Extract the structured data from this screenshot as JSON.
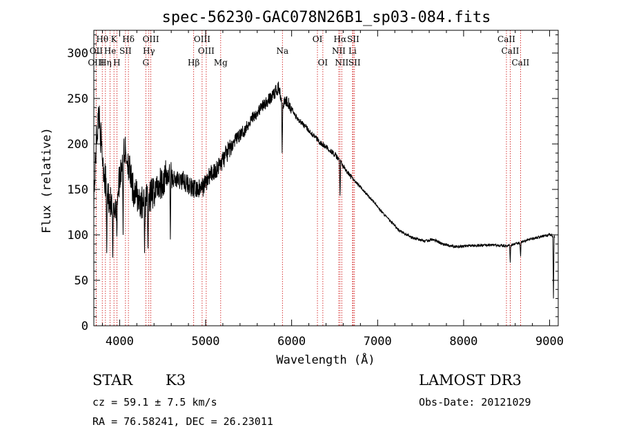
{
  "chart_data": {
    "type": "line",
    "title": "spec-56230-GAC078N26B1_sp03-084.fits",
    "xlabel": "Wavelength (Å)",
    "ylabel": "Flux (relative)",
    "xlim": [
      3700,
      9100
    ],
    "ylim": [
      0,
      325
    ],
    "x_ticks": [
      4000,
      5000,
      6000,
      7000,
      8000,
      9000
    ],
    "y_ticks": [
      0,
      50,
      100,
      150,
      200,
      250,
      300
    ],
    "grid": false,
    "line_color": "#000000",
    "line_marker_color": "#cc0000",
    "spectral_lines": [
      {
        "label": "Hθ",
        "wavelength": 3798,
        "row": 0
      },
      {
        "label": "K",
        "wavelength": 3934,
        "row": 0
      },
      {
        "label": "Hδ",
        "wavelength": 4102,
        "row": 0
      },
      {
        "label": "OIII",
        "wavelength": 4363,
        "row": 0
      },
      {
        "label": "OIII",
        "wavelength": 4959,
        "row": 0
      },
      {
        "label": "OI",
        "wavelength": 6300,
        "row": 0
      },
      {
        "label": "Hα",
        "wavelength": 6563,
        "row": 0
      },
      {
        "label": "SII",
        "wavelength": 6716,
        "row": 0
      },
      {
        "label": "CaII",
        "wavelength": 8498,
        "row": 0
      },
      {
        "label": "OII",
        "wavelength": 3727,
        "row": 1
      },
      {
        "label": "He",
        "wavelength": 3889,
        "row": 1
      },
      {
        "label": "SII",
        "wavelength": 4068,
        "row": 1
      },
      {
        "label": "Hγ",
        "wavelength": 4340,
        "row": 1
      },
      {
        "label": "OIII",
        "wavelength": 5007,
        "row": 1
      },
      {
        "label": "Na",
        "wavelength": 5893,
        "row": 1
      },
      {
        "label": "NII",
        "wavelength": 6548,
        "row": 1
      },
      {
        "label": "Li",
        "wavelength": 6708,
        "row": 1
      },
      {
        "label": "CaII",
        "wavelength": 8542,
        "row": 1
      },
      {
        "label": "OIII",
        "wavelength": 3727,
        "row": 2
      },
      {
        "label": "Hη",
        "wavelength": 3835,
        "row": 2
      },
      {
        "label": "H",
        "wavelength": 3968,
        "row": 2
      },
      {
        "label": "G",
        "wavelength": 4304,
        "row": 2
      },
      {
        "label": "Hβ",
        "wavelength": 4861,
        "row": 2
      },
      {
        "label": "Mg",
        "wavelength": 5175,
        "row": 2
      },
      {
        "label": "OI",
        "wavelength": 6363,
        "row": 2
      },
      {
        "label": "NII",
        "wavelength": 6583,
        "row": 2
      },
      {
        "label": "SII",
        "wavelength": 6731,
        "row": 2
      },
      {
        "label": "CaII",
        "wavelength": 8662,
        "row": 2
      }
    ],
    "spectrum_anchors": [
      {
        "x": 3700,
        "y": 140
      },
      {
        "x": 3730,
        "y": 205
      },
      {
        "x": 3760,
        "y": 235
      },
      {
        "x": 3790,
        "y": 195
      },
      {
        "x": 3830,
        "y": 160
      },
      {
        "x": 3880,
        "y": 140
      },
      {
        "x": 3930,
        "y": 120
      },
      {
        "x": 3980,
        "y": 150
      },
      {
        "x": 4050,
        "y": 195
      },
      {
        "x": 4100,
        "y": 180
      },
      {
        "x": 4150,
        "y": 150
      },
      {
        "x": 4250,
        "y": 135
      },
      {
        "x": 4350,
        "y": 140
      },
      {
        "x": 4450,
        "y": 155
      },
      {
        "x": 4550,
        "y": 165
      },
      {
        "x": 4650,
        "y": 160
      },
      {
        "x": 4750,
        "y": 160
      },
      {
        "x": 4850,
        "y": 150
      },
      {
        "x": 4950,
        "y": 150
      },
      {
        "x": 5050,
        "y": 165
      },
      {
        "x": 5150,
        "y": 175
      },
      {
        "x": 5250,
        "y": 190
      },
      {
        "x": 5350,
        "y": 205
      },
      {
        "x": 5450,
        "y": 215
      },
      {
        "x": 5550,
        "y": 230
      },
      {
        "x": 5650,
        "y": 240
      },
      {
        "x": 5750,
        "y": 250
      },
      {
        "x": 5850,
        "y": 262
      },
      {
        "x": 5900,
        "y": 245
      },
      {
        "x": 5950,
        "y": 248
      },
      {
        "x": 6050,
        "y": 230
      },
      {
        "x": 6150,
        "y": 220
      },
      {
        "x": 6250,
        "y": 210
      },
      {
        "x": 6350,
        "y": 200
      },
      {
        "x": 6450,
        "y": 193
      },
      {
        "x": 6550,
        "y": 183
      },
      {
        "x": 6650,
        "y": 168
      },
      {
        "x": 6750,
        "y": 158
      },
      {
        "x": 6850,
        "y": 147
      },
      {
        "x": 6950,
        "y": 137
      },
      {
        "x": 7050,
        "y": 125
      },
      {
        "x": 7150,
        "y": 115
      },
      {
        "x": 7250,
        "y": 105
      },
      {
        "x": 7400,
        "y": 97
      },
      {
        "x": 7550,
        "y": 93
      },
      {
        "x": 7650,
        "y": 95
      },
      {
        "x": 7750,
        "y": 90
      },
      {
        "x": 7900,
        "y": 87
      },
      {
        "x": 8100,
        "y": 88
      },
      {
        "x": 8300,
        "y": 89
      },
      {
        "x": 8500,
        "y": 88
      },
      {
        "x": 8650,
        "y": 91
      },
      {
        "x": 8800,
        "y": 96
      },
      {
        "x": 9000,
        "y": 100
      },
      {
        "x": 9060,
        "y": 98
      }
    ],
    "spectrum_dips": [
      {
        "x": 3850,
        "y": 80
      },
      {
        "x": 3920,
        "y": 75
      },
      {
        "x": 3968,
        "y": 95
      },
      {
        "x": 4040,
        "y": 100
      },
      {
        "x": 4290,
        "y": 80
      },
      {
        "x": 4330,
        "y": 85
      },
      {
        "x": 4590,
        "y": 95
      },
      {
        "x": 5890,
        "y": 190
      },
      {
        "x": 6563,
        "y": 140
      },
      {
        "x": 8542,
        "y": 68
      },
      {
        "x": 8662,
        "y": 75
      },
      {
        "x": 9045,
        "y": 30
      }
    ],
    "annotations": {
      "object_class": "STAR",
      "subclass": "K3",
      "survey": "LAMOST DR3",
      "redshift_text": "cz = 59.1 ± 7.5 km/s",
      "obs_date": "Obs-Date: 20121029",
      "coords": "RA =  76.58241, DEC =  26.23011"
    }
  }
}
